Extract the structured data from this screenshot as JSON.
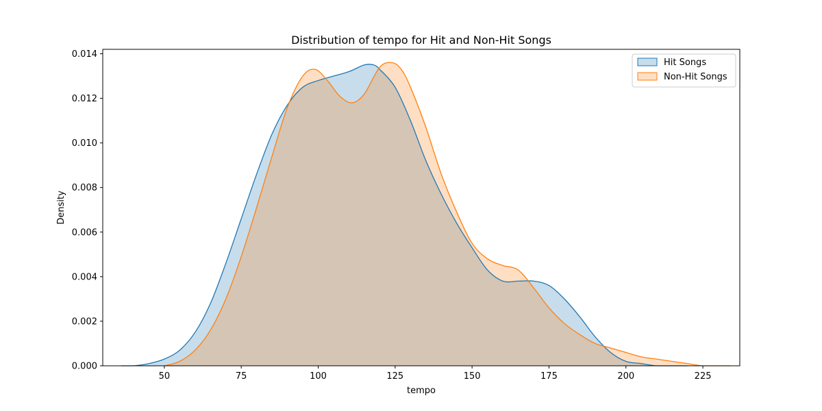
{
  "chart_data": {
    "type": "area",
    "title": "Distribution of tempo for Hit and Non-Hit Songs",
    "xlabel": "tempo",
    "ylabel": "Density",
    "xlim": [
      30,
      237
    ],
    "ylim": [
      0,
      0.0142
    ],
    "xticks": [
      {
        "value": 50,
        "label": "50"
      },
      {
        "value": 75,
        "label": "75"
      },
      {
        "value": 100,
        "label": "100"
      },
      {
        "value": 125,
        "label": "125"
      },
      {
        "value": 150,
        "label": "150"
      },
      {
        "value": 175,
        "label": "175"
      },
      {
        "value": 200,
        "label": "200"
      },
      {
        "value": 225,
        "label": "225"
      }
    ],
    "yticks": [
      {
        "value": 0.0,
        "label": "0.000"
      },
      {
        "value": 0.002,
        "label": "0.002"
      },
      {
        "value": 0.004,
        "label": "0.004"
      },
      {
        "value": 0.006,
        "label": "0.006"
      },
      {
        "value": 0.008,
        "label": "0.008"
      },
      {
        "value": 0.01,
        "label": "0.010"
      },
      {
        "value": 0.012,
        "label": "0.012"
      },
      {
        "value": 0.014,
        "label": "0.014"
      }
    ],
    "grid": false,
    "legend_position": "top-right",
    "series": [
      {
        "name": "Hit Songs",
        "color": "#1f77b4",
        "x": [
          36,
          40,
          45,
          50,
          55,
          60,
          65,
          70,
          75,
          80,
          85,
          90,
          95,
          100,
          105,
          110,
          115,
          118,
          120,
          125,
          130,
          135,
          140,
          145,
          150,
          155,
          160,
          165,
          170,
          175,
          180,
          185,
          190,
          195,
          200,
          205,
          210,
          215,
          220
        ],
        "y": [
          0.0,
          0.0,
          0.0001,
          0.0003,
          0.0007,
          0.0015,
          0.0028,
          0.0046,
          0.0066,
          0.0086,
          0.0104,
          0.0117,
          0.0125,
          0.0128,
          0.013,
          0.0132,
          0.0135,
          0.0135,
          0.0133,
          0.0125,
          0.011,
          0.0092,
          0.0077,
          0.0064,
          0.0053,
          0.0043,
          0.0038,
          0.0038,
          0.0038,
          0.0036,
          0.003,
          0.0022,
          0.0013,
          0.0006,
          0.0002,
          0.0001,
          0.0,
          0.0,
          0.0
        ]
      },
      {
        "name": "Non-Hit Songs",
        "color": "#ff7f0e",
        "x": [
          50,
          55,
          60,
          65,
          70,
          75,
          80,
          85,
          90,
          95,
          99,
          103,
          107,
          111,
          115,
          120,
          124,
          127,
          130,
          135,
          140,
          145,
          150,
          155,
          160,
          165,
          170,
          175,
          180,
          185,
          190,
          195,
          200,
          205,
          210,
          215,
          220,
          225,
          230,
          234
        ],
        "y": [
          0.0,
          0.0002,
          0.0007,
          0.0016,
          0.003,
          0.0049,
          0.0071,
          0.0094,
          0.0116,
          0.013,
          0.0133,
          0.0128,
          0.0121,
          0.0118,
          0.0122,
          0.0134,
          0.0136,
          0.0133,
          0.0125,
          0.0107,
          0.0086,
          0.0069,
          0.0055,
          0.0048,
          0.0045,
          0.0043,
          0.0035,
          0.0026,
          0.0019,
          0.0014,
          0.001,
          0.0008,
          0.0006,
          0.0004,
          0.0003,
          0.0002,
          0.0001,
          0.0,
          0.0,
          0.0
        ]
      }
    ]
  }
}
